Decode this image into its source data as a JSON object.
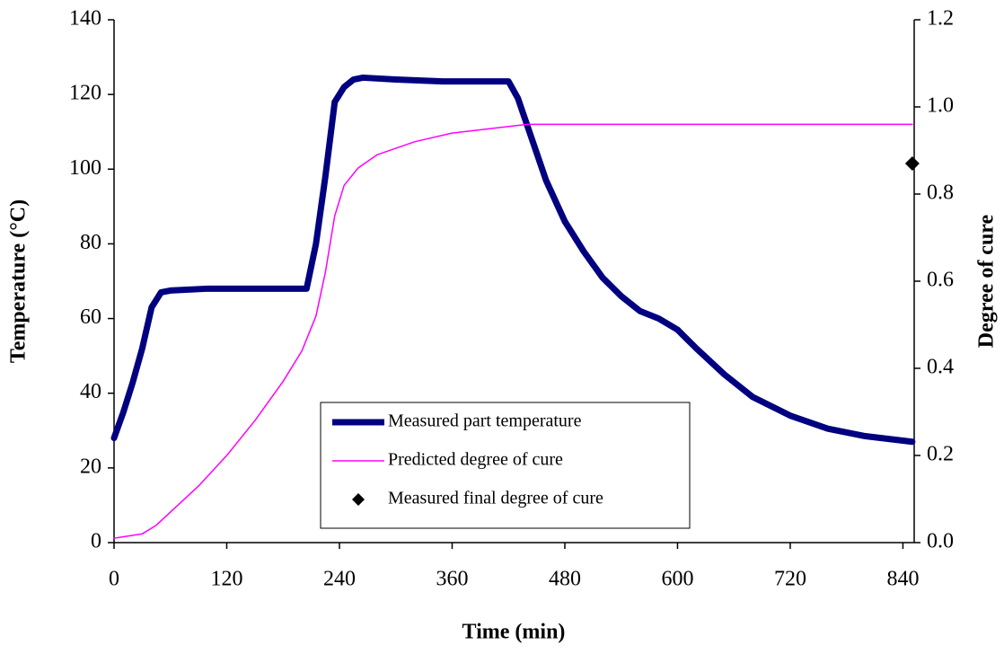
{
  "chart_data": {
    "type": "line",
    "xlabel": "Time (min)",
    "ylabel": "Temperature (°C)",
    "y2label": "Degree of cure",
    "xlim": [
      0,
      852
    ],
    "xticks": [
      0,
      120,
      240,
      360,
      480,
      600,
      720,
      840
    ],
    "ylim": [
      0,
      140
    ],
    "yticks": [
      0,
      20,
      40,
      60,
      80,
      100,
      120,
      140
    ],
    "y2lim": [
      0,
      1.2
    ],
    "y2ticks": [
      {
        "value": 0,
        "label": "0.0"
      },
      0.2,
      0.4,
      0.6,
      0.8,
      {
        "value": 1,
        "label": "1.0"
      },
      1.2
    ],
    "grid": false,
    "legend": "lower center",
    "series": [
      {
        "name": "Measured part temperature",
        "type": "line",
        "color": "#000080",
        "axis": "y",
        "x": [
          0,
          10,
          20,
          30,
          40,
          50,
          60,
          100,
          150,
          200,
          205,
          215,
          225,
          235,
          245,
          255,
          265,
          300,
          350,
          420,
          430,
          445,
          460,
          480,
          500,
          520,
          540,
          560,
          580,
          600,
          620,
          650,
          680,
          720,
          760,
          800,
          850
        ],
        "values": [
          28,
          35,
          43,
          52,
          63,
          67,
          67.5,
          68,
          68,
          68,
          68,
          80,
          98,
          118,
          122,
          124,
          124.5,
          124,
          123.5,
          123.5,
          119,
          108,
          97,
          86,
          78,
          71,
          66,
          62,
          60,
          57,
          52,
          45,
          39,
          34,
          30.5,
          28.5,
          27
        ]
      },
      {
        "name": "Predicted degree of cure",
        "type": "line",
        "color": "#ff00ff",
        "axis": "y2",
        "x": [
          0,
          30,
          45,
          60,
          90,
          120,
          150,
          180,
          200,
          215,
          225,
          235,
          245,
          260,
          280,
          320,
          360,
          400,
          440,
          500,
          600,
          850
        ],
        "values": [
          0.01,
          0.02,
          0.04,
          0.07,
          0.13,
          0.2,
          0.28,
          0.37,
          0.44,
          0.52,
          0.62,
          0.75,
          0.82,
          0.86,
          0.89,
          0.92,
          0.94,
          0.95,
          0.96,
          0.96,
          0.96,
          0.96
        ]
      },
      {
        "name": "Measured final degree of cure",
        "type": "scatter",
        "color": "#000000",
        "axis": "y2",
        "x": [
          850
        ],
        "values": [
          0.87
        ]
      }
    ]
  }
}
